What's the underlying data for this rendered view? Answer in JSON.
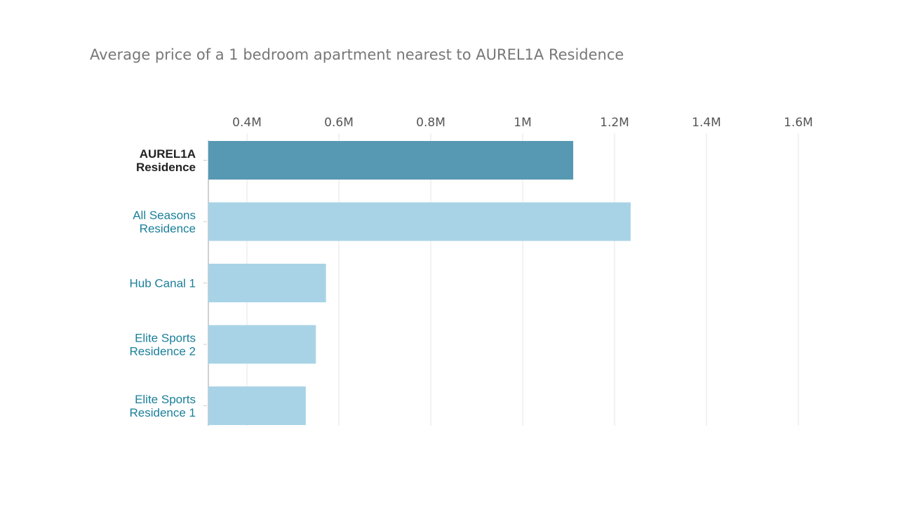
{
  "chart_data": {
    "type": "bar",
    "orientation": "horizontal",
    "title": "Average price of a 1 bedroom apartment nearest to AUREL1A Residence",
    "categories": [
      [
        "AUREL1A",
        "Residence"
      ],
      [
        "All Seasons",
        "Residence"
      ],
      [
        "Hub Canal 1"
      ],
      [
        "Elite Sports",
        "Residence 2"
      ],
      [
        "Elite Sports",
        "Residence 1"
      ]
    ],
    "values": [
      1.11,
      1.235,
      0.572,
      0.55,
      0.528
    ],
    "unit": "M",
    "highlighted_index": 0,
    "xlim": [
      0.316,
      1.72
    ],
    "xticks": [
      0.4,
      0.6,
      0.8,
      1.0,
      1.2,
      1.4,
      1.6
    ],
    "xtick_labels": [
      "0.4M",
      "0.6M",
      "0.8M",
      "1M",
      "1.2M",
      "1.4M",
      "1.6M"
    ],
    "xaxis_position": "top",
    "grid": true,
    "colors": {
      "highlight": "#5799b3",
      "bar": "#a8d3e7",
      "grid": "#e6e6e6",
      "label": "#1a7f9a",
      "highlight_label": "#222222"
    }
  }
}
